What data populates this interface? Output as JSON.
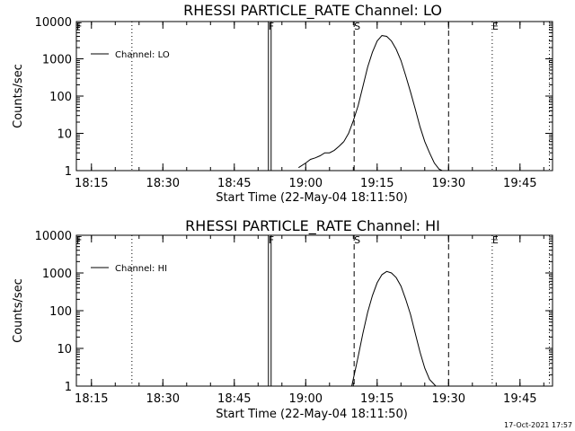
{
  "footer": {
    "timestamp": "17-Oct-2021 17:57"
  },
  "chart_data": [
    {
      "type": "line",
      "title": "RHESSI PARTICLE_RATE Channel: LO",
      "xlabel": "Start Time (22-May-04 18:11:50)",
      "ylabel": "Counts/sec",
      "yscale": "log",
      "ylim": [
        1,
        10000
      ],
      "xlim_minutes_after_18_11_50": [
        0,
        100
      ],
      "x_tick_labels": [
        "18:15",
        "18:30",
        "18:45",
        "19:00",
        "19:15",
        "19:30",
        "19:45"
      ],
      "y_tick_labels": [
        "1",
        "10",
        "100",
        "1000",
        "10000"
      ],
      "legend": [
        "Channel: LO"
      ],
      "markers": [
        {
          "label": "F",
          "time": "18:11:50",
          "style": "dotted"
        },
        {
          "label": "",
          "time": "18:23:30",
          "style": "dotted"
        },
        {
          "label": "F",
          "time": "18:52:10",
          "style": "solid"
        },
        {
          "label": "S",
          "time": "19:10:10",
          "style": "dashed"
        },
        {
          "label": "",
          "time": "19:30:00",
          "style": "dashed"
        },
        {
          "label": "E",
          "time": "19:39:10",
          "style": "dotted"
        },
        {
          "label": "",
          "time": "19:51:10",
          "style": "dotted"
        }
      ],
      "series": [
        {
          "name": "Channel: LO",
          "x": [
            "18:58:30",
            "19:00:00",
            "19:01:00",
            "19:02:00",
            "19:03:00",
            "19:04:00",
            "19:05:00",
            "19:06:00",
            "19:07:00",
            "19:08:00",
            "19:09:00",
            "19:10:00",
            "19:11:00",
            "19:12:00",
            "19:13:00",
            "19:14:00",
            "19:15:00",
            "19:16:00",
            "19:17:00",
            "19:18:00",
            "19:19:00",
            "19:20:00",
            "19:21:00",
            "19:22:00",
            "19:23:00",
            "19:24:00",
            "19:25:00",
            "19:26:00",
            "19:27:00",
            "19:28:00",
            "19:28:40"
          ],
          "y": [
            1.2,
            1.6,
            2,
            2.2,
            2.5,
            3,
            3,
            3.5,
            4.5,
            6,
            10,
            22,
            55,
            180,
            600,
            1500,
            3000,
            4200,
            4000,
            3000,
            1800,
            900,
            350,
            130,
            45,
            15,
            6,
            3,
            1.6,
            1.1,
            1
          ]
        }
      ]
    },
    {
      "type": "line",
      "title": "RHESSI PARTICLE_RATE Channel: HI",
      "xlabel": "Start Time (22-May-04 18:11:50)",
      "ylabel": "Counts/sec",
      "yscale": "log",
      "ylim": [
        1,
        10000
      ],
      "xlim_minutes_after_18_11_50": [
        0,
        100
      ],
      "x_tick_labels": [
        "18:15",
        "18:30",
        "18:45",
        "19:00",
        "19:15",
        "19:30",
        "19:45"
      ],
      "y_tick_labels": [
        "1",
        "10",
        "100",
        "1000",
        "10000"
      ],
      "legend": [
        "Channel: HI"
      ],
      "markers": [
        {
          "label": "F",
          "time": "18:11:50",
          "style": "dotted"
        },
        {
          "label": "",
          "time": "18:23:30",
          "style": "dotted"
        },
        {
          "label": "F",
          "time": "18:52:10",
          "style": "solid"
        },
        {
          "label": "S",
          "time": "19:10:10",
          "style": "dashed"
        },
        {
          "label": "",
          "time": "19:30:00",
          "style": "dashed"
        },
        {
          "label": "E",
          "time": "19:39:10",
          "style": "dotted"
        },
        {
          "label": "",
          "time": "19:51:10",
          "style": "dotted"
        }
      ],
      "series": [
        {
          "name": "Channel: HI",
          "x": [
            "19:09:40",
            "19:10:30",
            "19:11:00",
            "19:12:00",
            "19:13:00",
            "19:14:00",
            "19:15:00",
            "19:16:00",
            "19:17:00",
            "19:18:00",
            "19:19:00",
            "19:20:00",
            "19:21:00",
            "19:22:00",
            "19:23:00",
            "19:24:00",
            "19:25:00",
            "19:26:00",
            "19:27:20"
          ],
          "y": [
            1,
            3,
            6,
            25,
            90,
            250,
            550,
            900,
            1100,
            1000,
            750,
            450,
            200,
            80,
            25,
            8,
            3,
            1.5,
            1
          ]
        }
      ]
    }
  ]
}
